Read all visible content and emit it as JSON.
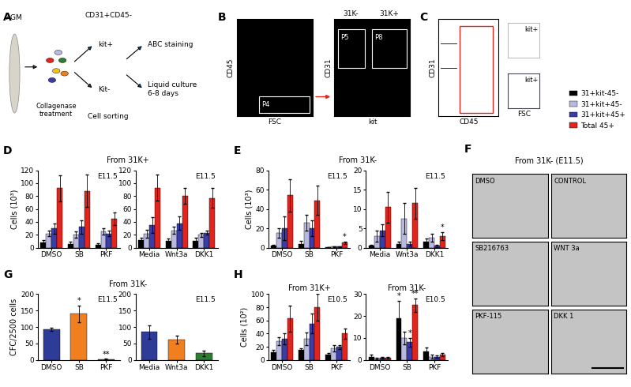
{
  "chart_data": [
    {
      "type": "bar",
      "panel": "D",
      "stage": "E11.5",
      "y_label": "Cells (10³)",
      "legend": "lower right",
      "categories": [
        "DMSO",
        "SB",
        "PKF"
      ],
      "ylim": [
        0,
        120
      ],
      "yticks": [
        0,
        20,
        40,
        60,
        80,
        100,
        120
      ],
      "series": [
        {
          "name": "31+kit-45-",
          "color": "#000000",
          "values": [
            8,
            6,
            5
          ],
          "errors": [
            4,
            3,
            2
          ]
        },
        {
          "name": "31+kit+45-",
          "color": "#b9b9e0",
          "values": [
            22,
            20,
            25
          ],
          "errors": [
            4,
            5,
            5
          ]
        },
        {
          "name": "31+kit+45+",
          "color": "#3a3da6",
          "values": [
            30,
            32,
            22
          ],
          "errors": [
            8,
            10,
            4
          ]
        },
        {
          "name": "Total 45+",
          "color": "#e3241d",
          "values": [
            92,
            88,
            45
          ],
          "errors": [
            20,
            25,
            10
          ]
        }
      ]
    },
    {
      "type": "bar",
      "panel": "D",
      "stage": "E11.5",
      "categories": [
        "Media",
        "Wnt3a",
        "DKK1"
      ],
      "ylim": [
        0,
        120
      ],
      "yticks": [
        0,
        20,
        40,
        60,
        80,
        100,
        120
      ],
      "series": [
        {
          "name": "31+kit-45-",
          "color": "#000000",
          "values": [
            12,
            10,
            10
          ],
          "errors": [
            4,
            4,
            5
          ]
        },
        {
          "name": "31+kit+45-",
          "color": "#b9b9e0",
          "values": [
            22,
            27,
            20
          ],
          "errors": [
            6,
            6,
            3
          ]
        },
        {
          "name": "31+kit+45+",
          "color": "#3a3da6",
          "values": [
            35,
            38,
            23
          ],
          "errors": [
            12,
            10,
            3
          ]
        },
        {
          "name": "Total 45+",
          "color": "#e3241d",
          "values": [
            93,
            80,
            77
          ],
          "errors": [
            20,
            12,
            15
          ]
        }
      ]
    },
    {
      "type": "bar",
      "panel": "E",
      "stage": "E11.5",
      "y_label": "Cells (10³)",
      "categories": [
        "DMSO",
        "SB",
        "PKF"
      ],
      "ylim": [
        0,
        80
      ],
      "yticks": [
        0,
        20,
        40,
        60,
        80
      ],
      "series": [
        {
          "name": "31+kit-45-",
          "color": "#000000",
          "values": [
            2,
            4,
            0.5
          ],
          "errors": [
            1,
            3,
            0.2
          ]
        },
        {
          "name": "31+kit+45-",
          "color": "#b9b9e0",
          "values": [
            15,
            26,
            1
          ],
          "errors": [
            5,
            8,
            0.5
          ]
        },
        {
          "name": "31+kit+45+",
          "color": "#3a3da6",
          "values": [
            20,
            20,
            1
          ],
          "errors": [
            12,
            8,
            0.5
          ]
        },
        {
          "name": "Total 45+",
          "color": "#e3241d",
          "values": [
            54,
            49,
            5
          ],
          "errors": [
            17,
            15,
            1.5
          ]
        }
      ],
      "annotations": [
        {
          "category": "PKF",
          "series": "Total 45+",
          "text": "*"
        }
      ]
    },
    {
      "type": "bar",
      "panel": "E",
      "stage": "E11.5",
      "categories": [
        "Media",
        "Wnt3a",
        "DKK1"
      ],
      "ylim": [
        0,
        20
      ],
      "yticks": [
        0,
        5,
        10,
        15,
        20
      ],
      "series": [
        {
          "name": "31+kit-45-",
          "color": "#000000",
          "values": [
            0.5,
            1,
            1.5
          ],
          "errors": [
            0.3,
            0.5,
            0.8
          ]
        },
        {
          "name": "31+kit+45-",
          "color": "#b9b9e0",
          "values": [
            3,
            7.5,
            2.5
          ],
          "errors": [
            1.5,
            4,
            1
          ]
        },
        {
          "name": "31+kit+45+",
          "color": "#3a3da6",
          "values": [
            4.5,
            1,
            0.5
          ],
          "errors": [
            1.5,
            0.5,
            0.3
          ]
        },
        {
          "name": "Total 45+",
          "color": "#e3241d",
          "values": [
            10.5,
            11.5,
            3
          ],
          "errors": [
            4,
            4,
            1
          ]
        }
      ],
      "annotations": [
        {
          "category": "DKK1",
          "series": "Total 45+",
          "text": "*"
        }
      ]
    },
    {
      "type": "bar",
      "panel": "G",
      "stage": "E11.5",
      "y_label": "CFC/2500 cells",
      "categories": [
        "DMSO",
        "SB",
        "PKF"
      ],
      "ylim": [
        0,
        200
      ],
      "yticks": [
        0,
        50,
        100,
        150,
        200
      ],
      "values": [
        92,
        140,
        2
      ],
      "errors": [
        5,
        25,
        1
      ],
      "colors": [
        "#2e3b97",
        "#f07f1f",
        "#2e7d32"
      ],
      "annotations": [
        {
          "category": "SB",
          "text": "*"
        },
        {
          "category": "PKF",
          "text": "**"
        }
      ]
    },
    {
      "type": "bar",
      "panel": "G",
      "stage": "E11.5",
      "categories": [
        "Media",
        "Wnt3a",
        "DKK1"
      ],
      "ylim": [
        0,
        200
      ],
      "yticks": [
        0,
        50,
        100,
        150,
        200
      ],
      "values": [
        85,
        62,
        20
      ],
      "errors": [
        20,
        12,
        8
      ],
      "colors": [
        "#2e3b97",
        "#f07f1f",
        "#2e7d32"
      ]
    },
    {
      "type": "bar",
      "panel": "H",
      "title": "From 31K+",
      "stage": "E10.5",
      "y_label": "Cells (10²)",
      "categories": [
        "DMSO",
        "SB",
        "PKF"
      ],
      "ylim": [
        0,
        100
      ],
      "yticks": [
        0,
        20,
        40,
        60,
        80,
        100
      ],
      "series": [
        {
          "name": "31+kit-45-",
          "color": "#000000",
          "values": [
            12,
            15,
            8
          ],
          "errors": [
            3,
            3,
            2
          ]
        },
        {
          "name": "31+kit+45-",
          "color": "#b9b9e0",
          "values": [
            28,
            32,
            18
          ],
          "errors": [
            6,
            10,
            5
          ]
        },
        {
          "name": "31+kit+45+",
          "color": "#3a3da6",
          "values": [
            32,
            55,
            20
          ],
          "errors": [
            8,
            15,
            3
          ]
        },
        {
          "name": "Total 45+",
          "color": "#e3241d",
          "values": [
            63,
            80,
            40
          ],
          "errors": [
            20,
            20,
            8
          ]
        }
      ]
    },
    {
      "type": "bar",
      "panel": "H",
      "title": "From 31K-",
      "stage": "E10.5",
      "categories": [
        "DMSO",
        "SB",
        "PKF"
      ],
      "ylim": [
        0,
        30
      ],
      "yticks": [
        0,
        10,
        20,
        30
      ],
      "series": [
        {
          "name": "31+kit-45-",
          "color": "#000000",
          "values": [
            1.5,
            19,
            4
          ],
          "errors": [
            0.8,
            8,
            1.5
          ]
        },
        {
          "name": "31+kit+45-",
          "color": "#b9b9e0",
          "values": [
            0.5,
            10,
            1.5
          ],
          "errors": [
            0.3,
            3,
            1
          ]
        },
        {
          "name": "31+kit+45+",
          "color": "#3a3da6",
          "values": [
            1,
            8,
            1.5
          ],
          "errors": [
            0.5,
            2,
            0.5
          ]
        },
        {
          "name": "Total 45+",
          "color": "#e3241d",
          "values": [
            1,
            25,
            2.5
          ],
          "errors": [
            0.5,
            3,
            0.8
          ]
        }
      ],
      "annotations": [
        {
          "category": "SB",
          "series": "31+kit-45-",
          "text": "*"
        },
        {
          "category": "SB",
          "series": "31+kit+45+",
          "text": "*"
        },
        {
          "category": "SB",
          "series": "Total 45+",
          "text": "**"
        }
      ]
    }
  ],
  "panel_titles": {
    "D": "From 31K+",
    "E": "From 31K-",
    "G": "From 31K-"
  },
  "diagram_a": {
    "letter": "A",
    "tissue": "AGM",
    "treatment": "Collagenase\ntreatment",
    "population": "CD31+CD45-",
    "kit_pos": "kit+",
    "kit_neg": "Kit-",
    "sorting": "Cell sorting",
    "out_1": "ABC staining",
    "out_2": "Liquid culture\n6-8 days"
  },
  "flow_b": {
    "letter": "B",
    "left_x": "FSC",
    "left_y": "CD45",
    "gate_left": "P4",
    "right_x": "kit",
    "right_y": "CD31",
    "neg_label": "31K-",
    "pos_label": "31K+",
    "gate_neg": "P5",
    "gate_pos": "P8"
  },
  "flow_c": {
    "letter": "C",
    "x_label": "CD45",
    "y_label": "CD31",
    "box_top": "kit+",
    "box_bottom": "kit+",
    "box_x_label": "FSC"
  },
  "images_f": {
    "letter": "F",
    "title": "From 31K- (E11.5)",
    "labels": [
      "DMSO",
      "CONTROL",
      "SB216763",
      "WNT 3a",
      "PKF-115",
      "DKK 1"
    ]
  }
}
